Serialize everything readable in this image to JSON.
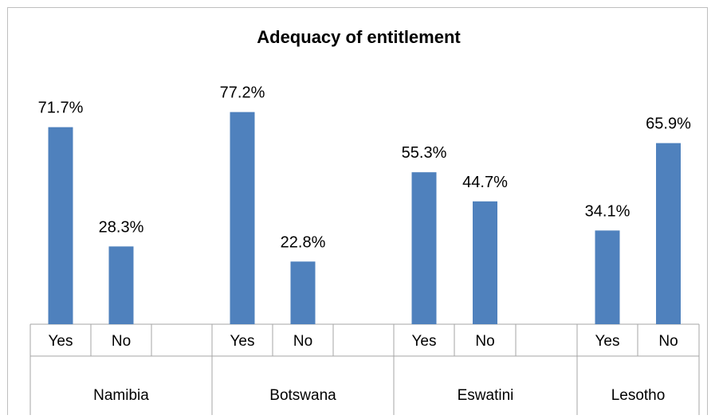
{
  "chart_data": {
    "type": "bar",
    "title": "Adequacy of entitlement",
    "groups": [
      {
        "name": "Namibia",
        "categories": [
          "Yes",
          "No"
        ],
        "values": [
          71.7,
          28.3
        ]
      },
      {
        "name": "Botswana",
        "categories": [
          "Yes",
          "No"
        ],
        "values": [
          77.2,
          22.8
        ]
      },
      {
        "name": "Eswatini",
        "categories": [
          "Yes",
          "No"
        ],
        "values": [
          55.3,
          44.7
        ]
      },
      {
        "name": "Lesotho",
        "categories": [
          "Yes",
          "No"
        ],
        "values": [
          34.1,
          65.9
        ]
      }
    ],
    "value_labels": {
      "Namibia": [
        "71.7%",
        "28.3%"
      ],
      "Botswana": [
        "77.2%",
        "22.8%"
      ],
      "Eswatini": [
        "55.3%",
        "44.7%"
      ],
      "Lesotho": [
        "34.1%",
        "65.9%"
      ]
    },
    "ylim": [
      0,
      100
    ],
    "grid": false,
    "legend": "none",
    "bar_color": "#4F81BD"
  }
}
